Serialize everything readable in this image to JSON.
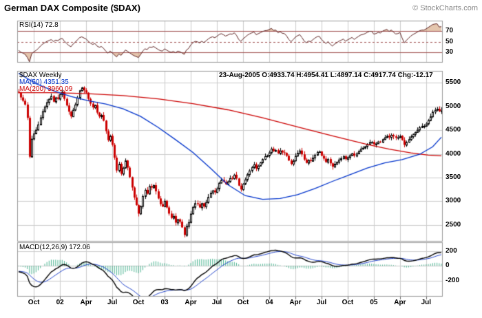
{
  "header": {
    "title": "German DAX Composite ($DAX)",
    "copyright": "© StockCharts.com"
  },
  "legends": {
    "rsi": "RSI(14) 72.8",
    "symbol": "$DAX Weekly",
    "ma50": "MA(50) 4351.35",
    "ma200": "MA(200) 3960.09",
    "ohlc": "23-Aug-2005 O:4933.74 H:4954.41 L:4897.14 C:4917.74 Chg:-12.17",
    "macd": "MACD(12,26,9) 172.06"
  },
  "colors": {
    "grid": "#cccccc",
    "border": "#999999",
    "up_candle": "#000000",
    "down_candle": "#cc0000",
    "ma50_line": "#0033cc",
    "ma200_line": "#cc0000",
    "rsi_line": "#5c1f1f",
    "rsi_levels": "#a05050",
    "rsi_fill": "rgba(210,160,120,0.6)",
    "macd_line": "#000000",
    "macd_signal": "#2244cc",
    "macd_hist": "rgba(0,150,100,0.7)",
    "tick": "#666666"
  },
  "x_axis": {
    "labels": [
      {
        "text": "Oct",
        "week": 7
      },
      {
        "text": "02",
        "week": 19
      },
      {
        "text": "Apr",
        "week": 31
      },
      {
        "text": "Jul",
        "week": 43
      },
      {
        "text": "Oct",
        "week": 55
      },
      {
        "text": "03",
        "week": 67
      },
      {
        "text": "Apr",
        "week": 79
      },
      {
        "text": "Jul",
        "week": 91
      },
      {
        "text": "Oct",
        "week": 103
      },
      {
        "text": "04",
        "week": 115
      },
      {
        "text": "Apr",
        "week": 127
      },
      {
        "text": "Jul",
        "week": 139
      },
      {
        "text": "Oct",
        "week": 151
      },
      {
        "text": "05",
        "week": 163
      },
      {
        "text": "Apr",
        "week": 175
      },
      {
        "text": "Jul",
        "week": 187
      }
    ]
  },
  "chart_data": [
    {
      "name": "rsi-panel",
      "type": "line",
      "title": "RSI(14)",
      "last_value": 72.8,
      "ylim": [
        10,
        90
      ],
      "yticks": [
        70,
        50,
        30
      ],
      "levels": [
        {
          "value": 70,
          "style": "solid"
        },
        {
          "value": 50,
          "style": "dashed"
        },
        {
          "value": 30,
          "style": "solid"
        }
      ],
      "source": "RSI(14) computed from weekly closes below"
    },
    {
      "name": "price-panel",
      "type": "candlestick",
      "title": "$DAX Weekly",
      "ylim": [
        2150,
        5750
      ],
      "yticks": [
        5500,
        5000,
        4500,
        4000,
        3500,
        3000,
        2500
      ],
      "last_ohlc": {
        "date": "23-Aug-2005",
        "open": 4933.74,
        "high": 4954.41,
        "low": 4897.14,
        "close": 4917.74,
        "change": -12.17
      },
      "ma50_value": 4351.35,
      "ma200_value": 3960.09,
      "pre_closes": [
        5620,
        5560,
        5490,
        5400,
        5350,
        5410,
        5330,
        5250,
        5300,
        5350,
        5280,
        5220,
        5330,
        5390
      ],
      "weekly_closes": [
        5290,
        5190,
        5120,
        5040,
        4760,
        3940,
        4320,
        4430,
        4510,
        4620,
        4770,
        4900,
        5000,
        5090,
        5160,
        5220,
        5100,
        5190,
        5160,
        5260,
        5310,
        5160,
        5020,
        4890,
        4790,
        4930,
        5040,
        5190,
        5340,
        5400,
        5340,
        5290,
        5160,
        5060,
        4980,
        5030,
        4870,
        4790,
        4820,
        4700,
        4480,
        4290,
        4380,
        4190,
        3920,
        3650,
        3790,
        3580,
        3710,
        3860,
        3710,
        3510,
        3290,
        3080,
        2920,
        2740,
        2900,
        3110,
        3240,
        3160,
        3320,
        3290,
        3340,
        3210,
        3060,
        2940,
        2890,
        3010,
        2870,
        2740,
        2650,
        2690,
        2550,
        2620,
        2570,
        2450,
        2290,
        2480,
        2560,
        2740,
        2880,
        2960,
        2940,
        2870,
        2960,
        2890,
        2980,
        3090,
        3180,
        3230,
        3190,
        3270,
        3390,
        3450,
        3410,
        3360,
        3420,
        3490,
        3480,
        3560,
        3480,
        3330,
        3250,
        3370,
        3460,
        3570,
        3650,
        3720,
        3780,
        3690,
        3750,
        3820,
        3890,
        3950,
        3965,
        4030,
        4110,
        4060,
        4080,
        4010,
        4070,
        4030,
        4020,
        3960,
        3860,
        3790,
        3860,
        3960,
        4020,
        4070,
        3990,
        3880,
        3810,
        3870,
        3850,
        3920,
        3980,
        4040,
        4050,
        3960,
        3900,
        3830,
        3890,
        3800,
        3730,
        3790,
        3830,
        3880,
        3910,
        3950,
        3890,
        3930,
        3970,
        4010,
        3960,
        4010,
        4060,
        4110,
        4130,
        4160,
        4210,
        4250,
        4250,
        4200,
        4220,
        4260,
        4250,
        4310,
        4350,
        4380,
        4350,
        4400,
        4370,
        4340,
        4350,
        4380,
        4290,
        4190,
        4250,
        4310,
        4370,
        4420,
        4460,
        4510,
        4560,
        4590,
        4590,
        4640,
        4710,
        4790,
        4890,
        4930,
        4950,
        4900,
        4918
      ],
      "ma50_anchor_points": [
        [
          0,
          5700
        ],
        [
          8,
          5480
        ],
        [
          16,
          5330
        ],
        [
          24,
          5210
        ],
        [
          32,
          5120
        ],
        [
          40,
          5050
        ],
        [
          48,
          4950
        ],
        [
          56,
          4790
        ],
        [
          64,
          4560
        ],
        [
          72,
          4300
        ],
        [
          80,
          4030
        ],
        [
          88,
          3700
        ],
        [
          96,
          3350
        ],
        [
          104,
          3120
        ],
        [
          112,
          3040
        ],
        [
          120,
          3060
        ],
        [
          128,
          3140
        ],
        [
          136,
          3270
        ],
        [
          144,
          3420
        ],
        [
          152,
          3560
        ],
        [
          160,
          3700
        ],
        [
          168,
          3810
        ],
        [
          176,
          3880
        ],
        [
          184,
          3990
        ],
        [
          190,
          4150
        ],
        [
          194,
          4351
        ]
      ],
      "ma200_anchor_points": [
        [
          0,
          5290
        ],
        [
          16,
          5290
        ],
        [
          32,
          5270
        ],
        [
          48,
          5230
        ],
        [
          64,
          5160
        ],
        [
          80,
          5060
        ],
        [
          96,
          4930
        ],
        [
          112,
          4760
        ],
        [
          128,
          4570
        ],
        [
          144,
          4380
        ],
        [
          160,
          4200
        ],
        [
          170,
          4100
        ],
        [
          180,
          4020
        ],
        [
          188,
          3975
        ],
        [
          194,
          3960
        ]
      ]
    },
    {
      "name": "macd-panel",
      "type": "line",
      "title": "MACD(12,26,9)",
      "params": [
        12,
        26,
        9
      ],
      "last_value": 172.06,
      "ylim": [
        -420,
        320
      ],
      "yticks": [
        200,
        0,
        -200
      ],
      "source": "MACD(12,26,9) computed from weekly closes above"
    }
  ]
}
